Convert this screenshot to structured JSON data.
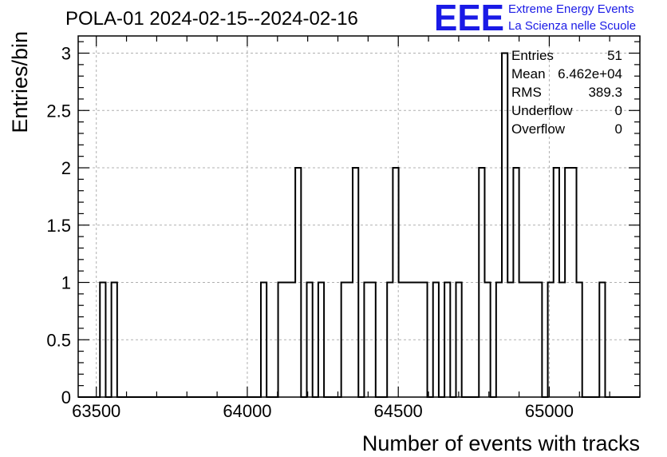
{
  "header": {
    "title": "POLA-01 2024-02-15--2024-02-16",
    "logo_text": "EEE",
    "logo_line1": "Extreme Energy Events",
    "logo_line2": "La Scienza nelle Scuole",
    "logo_color": "#1a1ae6"
  },
  "stats": [
    {
      "label": "Entries",
      "value": "51"
    },
    {
      "label": "Mean",
      "value": "6.462e+04"
    },
    {
      "label": "RMS",
      "value": "389.3"
    },
    {
      "label": "Underflow",
      "value": "0"
    },
    {
      "label": "Overflow",
      "value": "0"
    }
  ],
  "chart_data": {
    "type": "histogram",
    "title": "POLA-01 2024-02-15--2024-02-16",
    "xlabel": "Number of events with tracks",
    "ylabel": "Entries/bin",
    "xlim": [
      63440,
      65300
    ],
    "ylim": [
      0,
      3.15
    ],
    "grid": true,
    "line_color": "#000000",
    "x_ticks": [
      63500,
      64000,
      64500,
      65000
    ],
    "x_tick_labels": [
      "63500",
      "64000",
      "64500",
      "65000"
    ],
    "y_ticks": [
      0,
      0.5,
      1,
      1.5,
      2,
      2.5,
      3
    ],
    "y_tick_labels": [
      "0",
      "0.5",
      "1",
      "1.5",
      "2",
      "2.5",
      "3"
    ],
    "bins": [
      [
        63440,
        63512,
        0
      ],
      [
        63512,
        63531,
        1
      ],
      [
        63531,
        63550,
        0
      ],
      [
        63550,
        63569,
        1
      ],
      [
        63569,
        64045,
        0
      ],
      [
        64045,
        64064,
        1
      ],
      [
        64064,
        64102,
        0
      ],
      [
        64102,
        64159,
        1
      ],
      [
        64159,
        64178,
        2
      ],
      [
        64178,
        64197,
        0
      ],
      [
        64197,
        64216,
        1
      ],
      [
        64216,
        64235,
        0
      ],
      [
        64235,
        64254,
        1
      ],
      [
        64254,
        64311,
        0
      ],
      [
        64311,
        64349,
        1
      ],
      [
        64349,
        64368,
        2
      ],
      [
        64368,
        64387,
        0
      ],
      [
        64387,
        64425,
        1
      ],
      [
        64425,
        64463,
        0
      ],
      [
        64463,
        64482,
        1
      ],
      [
        64482,
        64501,
        2
      ],
      [
        64501,
        64596,
        1
      ],
      [
        64596,
        64615,
        0
      ],
      [
        64615,
        64634,
        1
      ],
      [
        64634,
        64653,
        0
      ],
      [
        64653,
        64672,
        1
      ],
      [
        64672,
        64691,
        0
      ],
      [
        64691,
        64710,
        1
      ],
      [
        64710,
        64767,
        0
      ],
      [
        64767,
        64786,
        2
      ],
      [
        64786,
        64805,
        1
      ],
      [
        64805,
        64824,
        0
      ],
      [
        64824,
        64843,
        1
      ],
      [
        64843,
        64862,
        3
      ],
      [
        64862,
        64881,
        1
      ],
      [
        64881,
        64900,
        2
      ],
      [
        64900,
        64976,
        1
      ],
      [
        64976,
        64995,
        0
      ],
      [
        64995,
        65014,
        1
      ],
      [
        65014,
        65033,
        2
      ],
      [
        65033,
        65052,
        1
      ],
      [
        65052,
        65090,
        2
      ],
      [
        65090,
        65109,
        1
      ],
      [
        65109,
        65166,
        0
      ],
      [
        65166,
        65185,
        1
      ],
      [
        65185,
        65300,
        0
      ]
    ]
  }
}
